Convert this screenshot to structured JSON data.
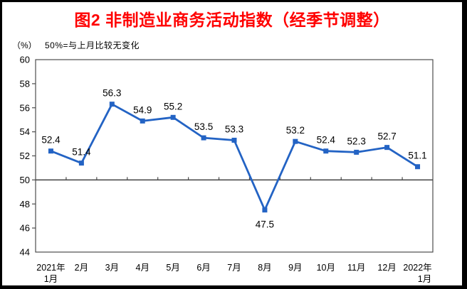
{
  "chart_data": {
    "type": "line",
    "title": "图2 非制造业商务活动指数（经季节调整）",
    "unit_label": "（%）",
    "note": "50%=与上月比较无变化",
    "categories": [
      "2021年1月",
      "2月",
      "3月",
      "4月",
      "5月",
      "6月",
      "7月",
      "8月",
      "9月",
      "10月",
      "11月",
      "12月",
      "2022年1月"
    ],
    "category_display": [
      [
        "2021年",
        "1月"
      ],
      [
        "2月"
      ],
      [
        "3月"
      ],
      [
        "4月"
      ],
      [
        "5月"
      ],
      [
        "6月"
      ],
      [
        "7月"
      ],
      [
        "8月"
      ],
      [
        "9月"
      ],
      [
        "10月"
      ],
      [
        "11月"
      ],
      [
        "12月"
      ],
      [
        "2022年",
        "1月"
      ]
    ],
    "values": [
      52.4,
      51.4,
      56.3,
      54.9,
      55.2,
      53.5,
      53.3,
      47.5,
      53.2,
      52.4,
      52.3,
      52.7,
      51.1
    ],
    "data_labels": [
      "52.4",
      "51.4",
      "56.3",
      "54.9",
      "55.2",
      "53.5",
      "53.3",
      "47.5",
      "53.2",
      "52.4",
      "52.3",
      "52.7",
      "51.1"
    ],
    "ylim": [
      44,
      60
    ],
    "ytick_step": 2,
    "yticks": [
      "60",
      "58",
      "56",
      "54",
      "52",
      "50",
      "48",
      "46",
      "44"
    ],
    "reference_line": 50,
    "label_below_indices": [
      7
    ],
    "legend": "none",
    "grid": "off",
    "colors": {
      "line": "#2363c4",
      "marker": "#2363c4",
      "title": "#ff0000",
      "axis": "#4d4d4d",
      "reference": "#404040",
      "text": "#000000"
    }
  }
}
